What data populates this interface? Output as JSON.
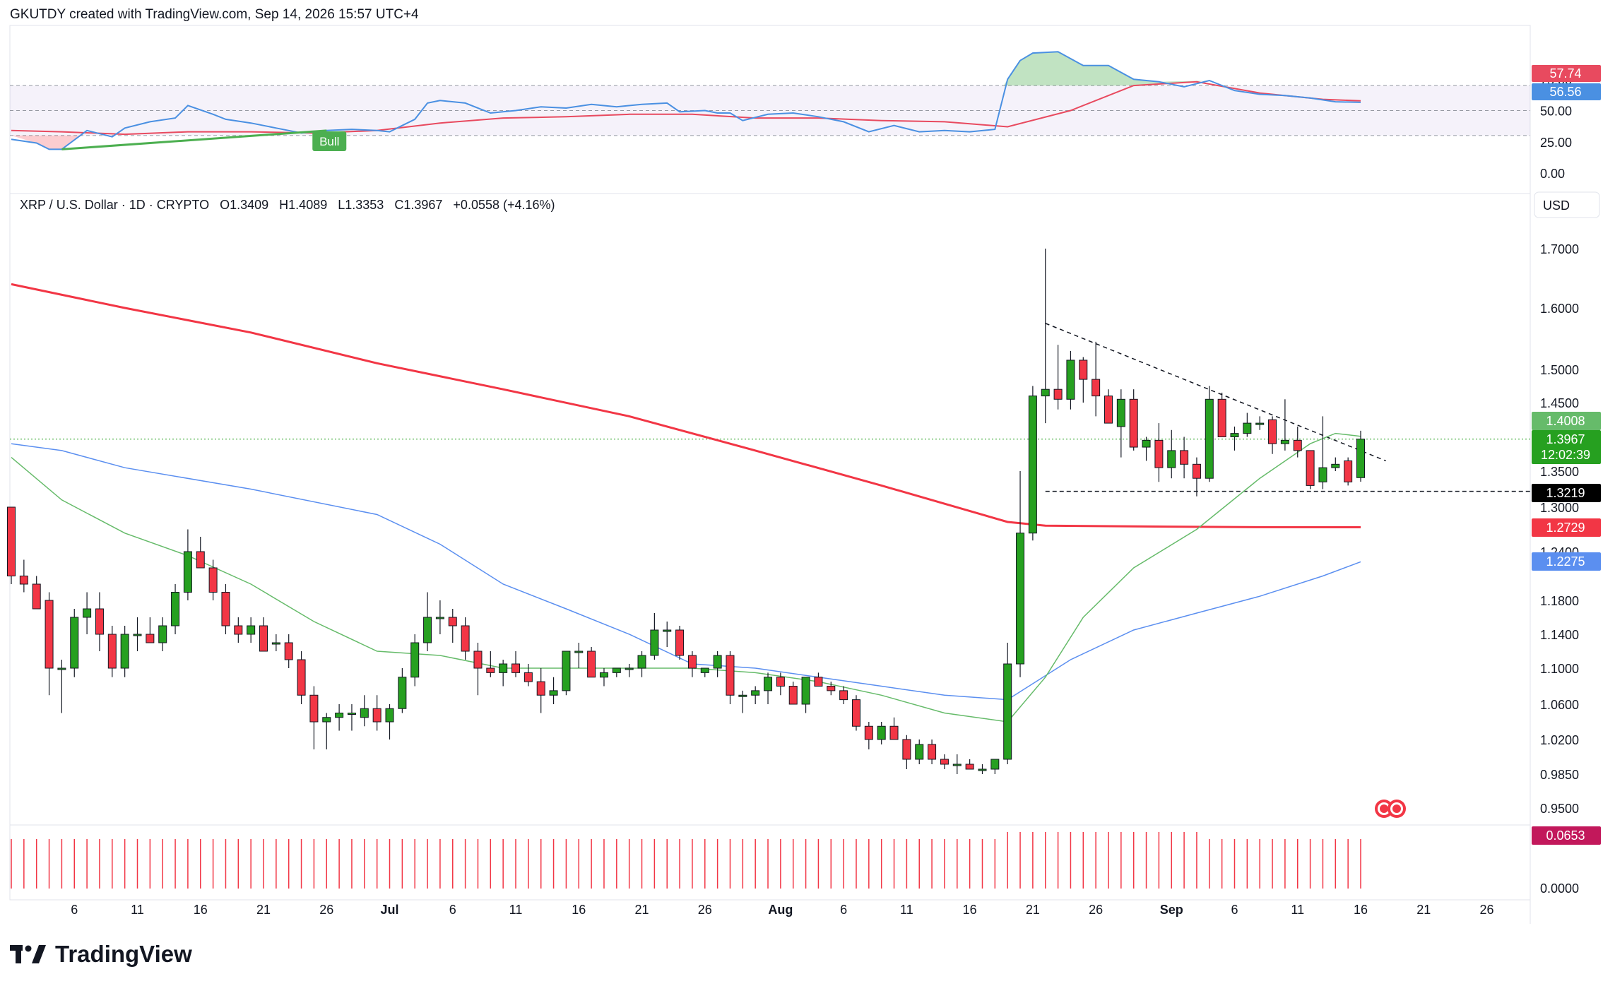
{
  "header": {
    "credit": "GKUTDY created with TradingView.com, Sep 14, 2026 15:57 UTC+4"
  },
  "legend": {
    "symbol": "XRP / U.S. Dollar · 1D · CRYPTO",
    "open": "O1.3409",
    "high": "H1.4089",
    "low": "L1.3353",
    "close": "C1.3967",
    "change": "+0.0558 (+4.16%)"
  },
  "currency_button": "USD",
  "rsi_panel": {
    "ticks": [
      "75.00",
      "50.00",
      "25.00",
      "0.00"
    ],
    "ma_value": "57.74",
    "rsi_value": "56.56",
    "bull_label": "Bull"
  },
  "price_panel": {
    "ticks": [
      "1.7000",
      "1.6000",
      "1.5000",
      "1.4500",
      "1.3500",
      "1.3000",
      "1.2400",
      "1.1800",
      "1.1400",
      "1.1000",
      "1.0600",
      "1.0200",
      "0.9850",
      "0.9500"
    ],
    "labels": {
      "ema20": "1.4008",
      "last_price": "1.3967",
      "countdown": "12:02:39",
      "support": "1.3219",
      "ma200": "1.2729",
      "ma50": "1.2275"
    }
  },
  "volume_panel": {
    "ticks": [
      "0.0000"
    ],
    "label": "0.0653"
  },
  "x_axis": {
    "labels": [
      {
        "day": 6,
        "text": "6"
      },
      {
        "day": 11,
        "text": "11"
      },
      {
        "day": 16,
        "text": "16"
      },
      {
        "day": 21,
        "text": "21"
      },
      {
        "day": 26,
        "text": "26"
      },
      {
        "day": 31,
        "text": "Jul"
      },
      {
        "day": 36,
        "text": "6"
      },
      {
        "day": 41,
        "text": "11"
      },
      {
        "day": 46,
        "text": "16"
      },
      {
        "day": 51,
        "text": "21"
      },
      {
        "day": 56,
        "text": "26"
      },
      {
        "day": 62,
        "text": "Aug"
      },
      {
        "day": 67,
        "text": "6"
      },
      {
        "day": 72,
        "text": "11"
      },
      {
        "day": 77,
        "text": "16"
      },
      {
        "day": 82,
        "text": "21"
      },
      {
        "day": 87,
        "text": "26"
      },
      {
        "day": 93,
        "text": "Sep"
      },
      {
        "day": 98,
        "text": "6"
      },
      {
        "day": 103,
        "text": "11"
      },
      {
        "day": 108,
        "text": "16"
      },
      {
        "day": 113,
        "text": "21"
      },
      {
        "day": 118,
        "text": "26"
      }
    ]
  },
  "footer": {
    "brand": "TradingView"
  },
  "colors": {
    "up": "#26a020",
    "down": "#f23645",
    "ma200": "#f23645",
    "ma50": "#5b8ff0",
    "ema20": "#66bb6a",
    "rsi": "#4a90e2",
    "rsi_ma": "#e84a5f",
    "bull": "#4caf50"
  },
  "chart_data": {
    "type": "candlestick",
    "title": "XRP / U.S. Dollar · 1D · CRYPTO",
    "x_note": "day index; day 31 = Jul 1, day 62 = Aug 1, day 93 = Sep 1",
    "ylim": [
      0.93,
      1.72
    ],
    "candles": [
      [
        1,
        1.3,
        1.3,
        1.2,
        1.21
      ],
      [
        2,
        1.21,
        1.23,
        1.19,
        1.2
      ],
      [
        3,
        1.2,
        1.21,
        1.17,
        1.17
      ],
      [
        4,
        1.18,
        1.19,
        1.07,
        1.1
      ],
      [
        5,
        1.1,
        1.11,
        1.05,
        1.1
      ],
      [
        6,
        1.1,
        1.17,
        1.09,
        1.16
      ],
      [
        7,
        1.16,
        1.19,
        1.14,
        1.17
      ],
      [
        8,
        1.17,
        1.19,
        1.12,
        1.14
      ],
      [
        9,
        1.14,
        1.15,
        1.09,
        1.1
      ],
      [
        10,
        1.1,
        1.15,
        1.09,
        1.14
      ],
      [
        11,
        1.14,
        1.16,
        1.12,
        1.14
      ],
      [
        12,
        1.14,
        1.16,
        1.13,
        1.13
      ],
      [
        13,
        1.13,
        1.16,
        1.12,
        1.15
      ],
      [
        14,
        1.15,
        1.2,
        1.14,
        1.19
      ],
      [
        15,
        1.19,
        1.27,
        1.18,
        1.24
      ],
      [
        16,
        1.24,
        1.26,
        1.22,
        1.22
      ],
      [
        17,
        1.22,
        1.23,
        1.18,
        1.19
      ],
      [
        18,
        1.19,
        1.2,
        1.14,
        1.15
      ],
      [
        19,
        1.15,
        1.16,
        1.13,
        1.14
      ],
      [
        20,
        1.14,
        1.16,
        1.13,
        1.15
      ],
      [
        21,
        1.15,
        1.16,
        1.12,
        1.12
      ],
      [
        22,
        1.13,
        1.14,
        1.12,
        1.13
      ],
      [
        23,
        1.13,
        1.14,
        1.1,
        1.11
      ],
      [
        24,
        1.11,
        1.12,
        1.06,
        1.07
      ],
      [
        25,
        1.07,
        1.08,
        1.01,
        1.04
      ],
      [
        26,
        1.04,
        1.05,
        1.01,
        1.045
      ],
      [
        27,
        1.045,
        1.06,
        1.03,
        1.05
      ],
      [
        28,
        1.05,
        1.06,
        1.03,
        1.05
      ],
      [
        29,
        1.045,
        1.07,
        1.035,
        1.055
      ],
      [
        30,
        1.055,
        1.07,
        1.03,
        1.04
      ],
      [
        31,
        1.04,
        1.06,
        1.02,
        1.055
      ],
      [
        32,
        1.055,
        1.1,
        1.05,
        1.09
      ],
      [
        33,
        1.09,
        1.14,
        1.08,
        1.13
      ],
      [
        34,
        1.13,
        1.19,
        1.12,
        1.16
      ],
      [
        35,
        1.16,
        1.18,
        1.14,
        1.16
      ],
      [
        36,
        1.16,
        1.17,
        1.13,
        1.15
      ],
      [
        37,
        1.15,
        1.16,
        1.11,
        1.12
      ],
      [
        38,
        1.12,
        1.13,
        1.07,
        1.1
      ],
      [
        39,
        1.1,
        1.12,
        1.09,
        1.095
      ],
      [
        40,
        1.095,
        1.11,
        1.08,
        1.105
      ],
      [
        41,
        1.105,
        1.12,
        1.09,
        1.095
      ],
      [
        42,
        1.095,
        1.105,
        1.08,
        1.085
      ],
      [
        43,
        1.085,
        1.1,
        1.05,
        1.07
      ],
      [
        44,
        1.07,
        1.09,
        1.06,
        1.075
      ],
      [
        45,
        1.075,
        1.12,
        1.07,
        1.12
      ],
      [
        46,
        1.12,
        1.13,
        1.1,
        1.12
      ],
      [
        47,
        1.12,
        1.125,
        1.09,
        1.09
      ],
      [
        48,
        1.09,
        1.1,
        1.08,
        1.095
      ],
      [
        49,
        1.095,
        1.1,
        1.09,
        1.1
      ],
      [
        50,
        1.1,
        1.105,
        1.09,
        1.1
      ],
      [
        51,
        1.1,
        1.12,
        1.09,
        1.115
      ],
      [
        52,
        1.115,
        1.165,
        1.11,
        1.145
      ],
      [
        53,
        1.145,
        1.155,
        1.125,
        1.145
      ],
      [
        54,
        1.145,
        1.15,
        1.11,
        1.115
      ],
      [
        55,
        1.115,
        1.12,
        1.09,
        1.1
      ],
      [
        56,
        1.095,
        1.1,
        1.09,
        1.1
      ],
      [
        57,
        1.1,
        1.12,
        1.09,
        1.115
      ],
      [
        58,
        1.115,
        1.12,
        1.06,
        1.07
      ],
      [
        59,
        1.07,
        1.075,
        1.05,
        1.07
      ],
      [
        60,
        1.07,
        1.08,
        1.06,
        1.075
      ],
      [
        61,
        1.075,
        1.095,
        1.06,
        1.09
      ],
      [
        62,
        1.09,
        1.095,
        1.07,
        1.08
      ],
      [
        63,
        1.08,
        1.085,
        1.06,
        1.06
      ],
      [
        64,
        1.06,
        1.09,
        1.05,
        1.09
      ],
      [
        65,
        1.09,
        1.095,
        1.08,
        1.08
      ],
      [
        66,
        1.08,
        1.085,
        1.07,
        1.075
      ],
      [
        67,
        1.075,
        1.08,
        1.06,
        1.065
      ],
      [
        68,
        1.065,
        1.07,
        1.03,
        1.035
      ],
      [
        69,
        1.035,
        1.04,
        1.01,
        1.02
      ],
      [
        70,
        1.02,
        1.04,
        1.015,
        1.035
      ],
      [
        71,
        1.035,
        1.045,
        1.02,
        1.02
      ],
      [
        72,
        1.02,
        1.025,
        0.99,
        1.0
      ],
      [
        73,
        1.0,
        1.02,
        0.995,
        1.015
      ],
      [
        74,
        1.015,
        1.02,
        0.995,
        1.0
      ],
      [
        75,
        1.0,
        1.005,
        0.99,
        0.995
      ],
      [
        76,
        0.995,
        1.005,
        0.985,
        0.995
      ],
      [
        77,
        0.995,
        1.0,
        0.99,
        0.99
      ],
      [
        78,
        0.99,
        0.995,
        0.985,
        0.99
      ],
      [
        79,
        0.99,
        1.0,
        0.985,
        1.0
      ],
      [
        80,
        1.0,
        1.13,
        0.995,
        1.105
      ],
      [
        81,
        1.105,
        1.35,
        1.09,
        1.265
      ],
      [
        82,
        1.265,
        1.475,
        1.255,
        1.46
      ],
      [
        83,
        1.46,
        1.7,
        1.42,
        1.47
      ],
      [
        84,
        1.47,
        1.54,
        1.44,
        1.455
      ],
      [
        85,
        1.455,
        1.53,
        1.44,
        1.515
      ],
      [
        86,
        1.515,
        1.52,
        1.45,
        1.485
      ],
      [
        87,
        1.485,
        1.545,
        1.43,
        1.46
      ],
      [
        88,
        1.46,
        1.47,
        1.42,
        1.42
      ],
      [
        89,
        1.415,
        1.47,
        1.37,
        1.455
      ],
      [
        90,
        1.455,
        1.47,
        1.38,
        1.385
      ],
      [
        91,
        1.385,
        1.4,
        1.365,
        1.395
      ],
      [
        92,
        1.395,
        1.42,
        1.335,
        1.355
      ],
      [
        93,
        1.355,
        1.41,
        1.34,
        1.38
      ],
      [
        94,
        1.38,
        1.4,
        1.34,
        1.36
      ],
      [
        95,
        1.36,
        1.37,
        1.315,
        1.34
      ],
      [
        96,
        1.34,
        1.475,
        1.335,
        1.455
      ],
      [
        97,
        1.455,
        1.465,
        1.4,
        1.4
      ],
      [
        98,
        1.4,
        1.415,
        1.38,
        1.405
      ],
      [
        99,
        1.405,
        1.435,
        1.4,
        1.42
      ],
      [
        100,
        1.42,
        1.43,
        1.41,
        1.42
      ],
      [
        101,
        1.425,
        1.43,
        1.375,
        1.39
      ],
      [
        102,
        1.39,
        1.455,
        1.38,
        1.395
      ],
      [
        103,
        1.395,
        1.415,
        1.37,
        1.38
      ],
      [
        104,
        1.38,
        1.38,
        1.325,
        1.33
      ],
      [
        105,
        1.335,
        1.43,
        1.325,
        1.355
      ],
      [
        106,
        1.355,
        1.37,
        1.35,
        1.36
      ],
      [
        107,
        1.365,
        1.37,
        1.33,
        1.335
      ],
      [
        108,
        1.3409,
        1.4089,
        1.3353,
        1.3967
      ]
    ],
    "ma200": [
      [
        1,
        1.64
      ],
      [
        10,
        1.6
      ],
      [
        20,
        1.56
      ],
      [
        30,
        1.51
      ],
      [
        40,
        1.47
      ],
      [
        50,
        1.43
      ],
      [
        60,
        1.38
      ],
      [
        70,
        1.33
      ],
      [
        80,
        1.28
      ],
      [
        83,
        1.275
      ],
      [
        90,
        1.274
      ],
      [
        100,
        1.273
      ],
      [
        108,
        1.2729
      ]
    ],
    "ma50": [
      [
        1,
        1.39
      ],
      [
        5,
        1.38
      ],
      [
        10,
        1.355
      ],
      [
        20,
        1.325
      ],
      [
        30,
        1.29
      ],
      [
        35,
        1.25
      ],
      [
        40,
        1.2
      ],
      [
        45,
        1.17
      ],
      [
        50,
        1.14
      ],
      [
        55,
        1.105
      ],
      [
        60,
        1.1
      ],
      [
        65,
        1.09
      ],
      [
        70,
        1.08
      ],
      [
        75,
        1.07
      ],
      [
        80,
        1.065
      ],
      [
        85,
        1.11
      ],
      [
        90,
        1.145
      ],
      [
        95,
        1.165
      ],
      [
        100,
        1.185
      ],
      [
        105,
        1.21
      ],
      [
        108,
        1.2275
      ]
    ],
    "ema20": [
      [
        1,
        1.37
      ],
      [
        5,
        1.31
      ],
      [
        10,
        1.265
      ],
      [
        15,
        1.235
      ],
      [
        20,
        1.2
      ],
      [
        25,
        1.155
      ],
      [
        30,
        1.12
      ],
      [
        35,
        1.115
      ],
      [
        40,
        1.1
      ],
      [
        45,
        1.1
      ],
      [
        50,
        1.1
      ],
      [
        55,
        1.1
      ],
      [
        60,
        1.095
      ],
      [
        65,
        1.085
      ],
      [
        70,
        1.07
      ],
      [
        75,
        1.05
      ],
      [
        80,
        1.04
      ],
      [
        83,
        1.09
      ],
      [
        86,
        1.16
      ],
      [
        90,
        1.22
      ],
      [
        95,
        1.27
      ],
      [
        100,
        1.34
      ],
      [
        104,
        1.39
      ],
      [
        106,
        1.405
      ],
      [
        108,
        1.4008
      ]
    ],
    "trendline": [
      [
        83,
        1.575
      ],
      [
        110,
        1.365
      ]
    ],
    "support_level": 1.3219,
    "rsi": [
      [
        1,
        27
      ],
      [
        3,
        24
      ],
      [
        4,
        19
      ],
      [
        5,
        19
      ],
      [
        7,
        34
      ],
      [
        9,
        29
      ],
      [
        10,
        36
      ],
      [
        12,
        41
      ],
      [
        14,
        44
      ],
      [
        15,
        54
      ],
      [
        17,
        47
      ],
      [
        18,
        43
      ],
      [
        20,
        40
      ],
      [
        22,
        36
      ],
      [
        24,
        32
      ],
      [
        26,
        34
      ],
      [
        28,
        35
      ],
      [
        30,
        34
      ],
      [
        31,
        33
      ],
      [
        32,
        38
      ],
      [
        33,
        43
      ],
      [
        34,
        56
      ],
      [
        35,
        58
      ],
      [
        37,
        56
      ],
      [
        39,
        48
      ],
      [
        41,
        50
      ],
      [
        43,
        53
      ],
      [
        45,
        52
      ],
      [
        47,
        55
      ],
      [
        49,
        53
      ],
      [
        51,
        55
      ],
      [
        53,
        56
      ],
      [
        54,
        49
      ],
      [
        56,
        50
      ],
      [
        57,
        48
      ],
      [
        58,
        48
      ],
      [
        59,
        42
      ],
      [
        61,
        47
      ],
      [
        63,
        48
      ],
      [
        65,
        45
      ],
      [
        67,
        41
      ],
      [
        69,
        33
      ],
      [
        71,
        38
      ],
      [
        73,
        33
      ],
      [
        75,
        34
      ],
      [
        77,
        33
      ],
      [
        79,
        35
      ],
      [
        80,
        75
      ],
      [
        81,
        90
      ],
      [
        82,
        96
      ],
      [
        84,
        97
      ],
      [
        86,
        86
      ],
      [
        88,
        86
      ],
      [
        90,
        75
      ],
      [
        92,
        73
      ],
      [
        94,
        69
      ],
      [
        96,
        74
      ],
      [
        98,
        66
      ],
      [
        100,
        63
      ],
      [
        102,
        62
      ],
      [
        104,
        60
      ],
      [
        106,
        57
      ],
      [
        108,
        56.56
      ]
    ],
    "rsi_ma": [
      [
        1,
        34
      ],
      [
        5,
        33
      ],
      [
        10,
        31
      ],
      [
        15,
        33
      ],
      [
        20,
        33
      ],
      [
        25,
        32
      ],
      [
        30,
        34
      ],
      [
        35,
        40
      ],
      [
        40,
        44
      ],
      [
        45,
        45
      ],
      [
        50,
        47
      ],
      [
        55,
        47
      ],
      [
        60,
        44
      ],
      [
        65,
        44
      ],
      [
        70,
        42
      ],
      [
        75,
        41
      ],
      [
        80,
        37
      ],
      [
        85,
        50
      ],
      [
        90,
        70
      ],
      [
        95,
        73
      ],
      [
        100,
        64
      ],
      [
        105,
        59
      ],
      [
        108,
        57.74
      ]
    ],
    "rsi_levels": [
      70,
      50,
      30
    ],
    "volume": [
      [
        1,
        0.0653
      ],
      [
        108,
        0.0653
      ]
    ]
  }
}
